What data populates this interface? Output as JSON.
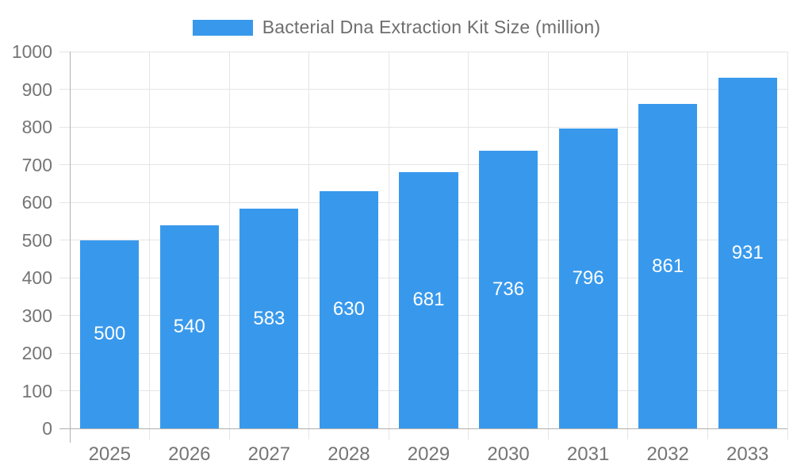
{
  "legend": {
    "label": "Bacterial Dna Extraction Kit Size (million)"
  },
  "chart_data": {
    "type": "bar",
    "title": "Bacterial Dna Extraction Kit Size (million)",
    "categories": [
      "2025",
      "2026",
      "2027",
      "2028",
      "2029",
      "2030",
      "2031",
      "2032",
      "2033"
    ],
    "values": [
      500,
      540,
      583,
      630,
      681,
      736,
      796,
      861,
      931
    ],
    "series_name": "Bacterial Dna Extraction Kit Size (million)",
    "xlabel": "",
    "ylabel": "",
    "ylim": [
      0,
      1000
    ],
    "y_tick_labels": [
      "0",
      "100",
      "200",
      "300",
      "400",
      "500",
      "600",
      "700",
      "800",
      "900",
      "1000"
    ],
    "grid": true,
    "legend_position": "top",
    "value_labels": "inside-center"
  },
  "colors": {
    "bar": "#3899ec",
    "grid": "#e5e5e5",
    "axis": "#b0b0b0",
    "tick_text": "#757575",
    "legend_text": "#6e6e6e",
    "value_text": "#ffffff"
  }
}
